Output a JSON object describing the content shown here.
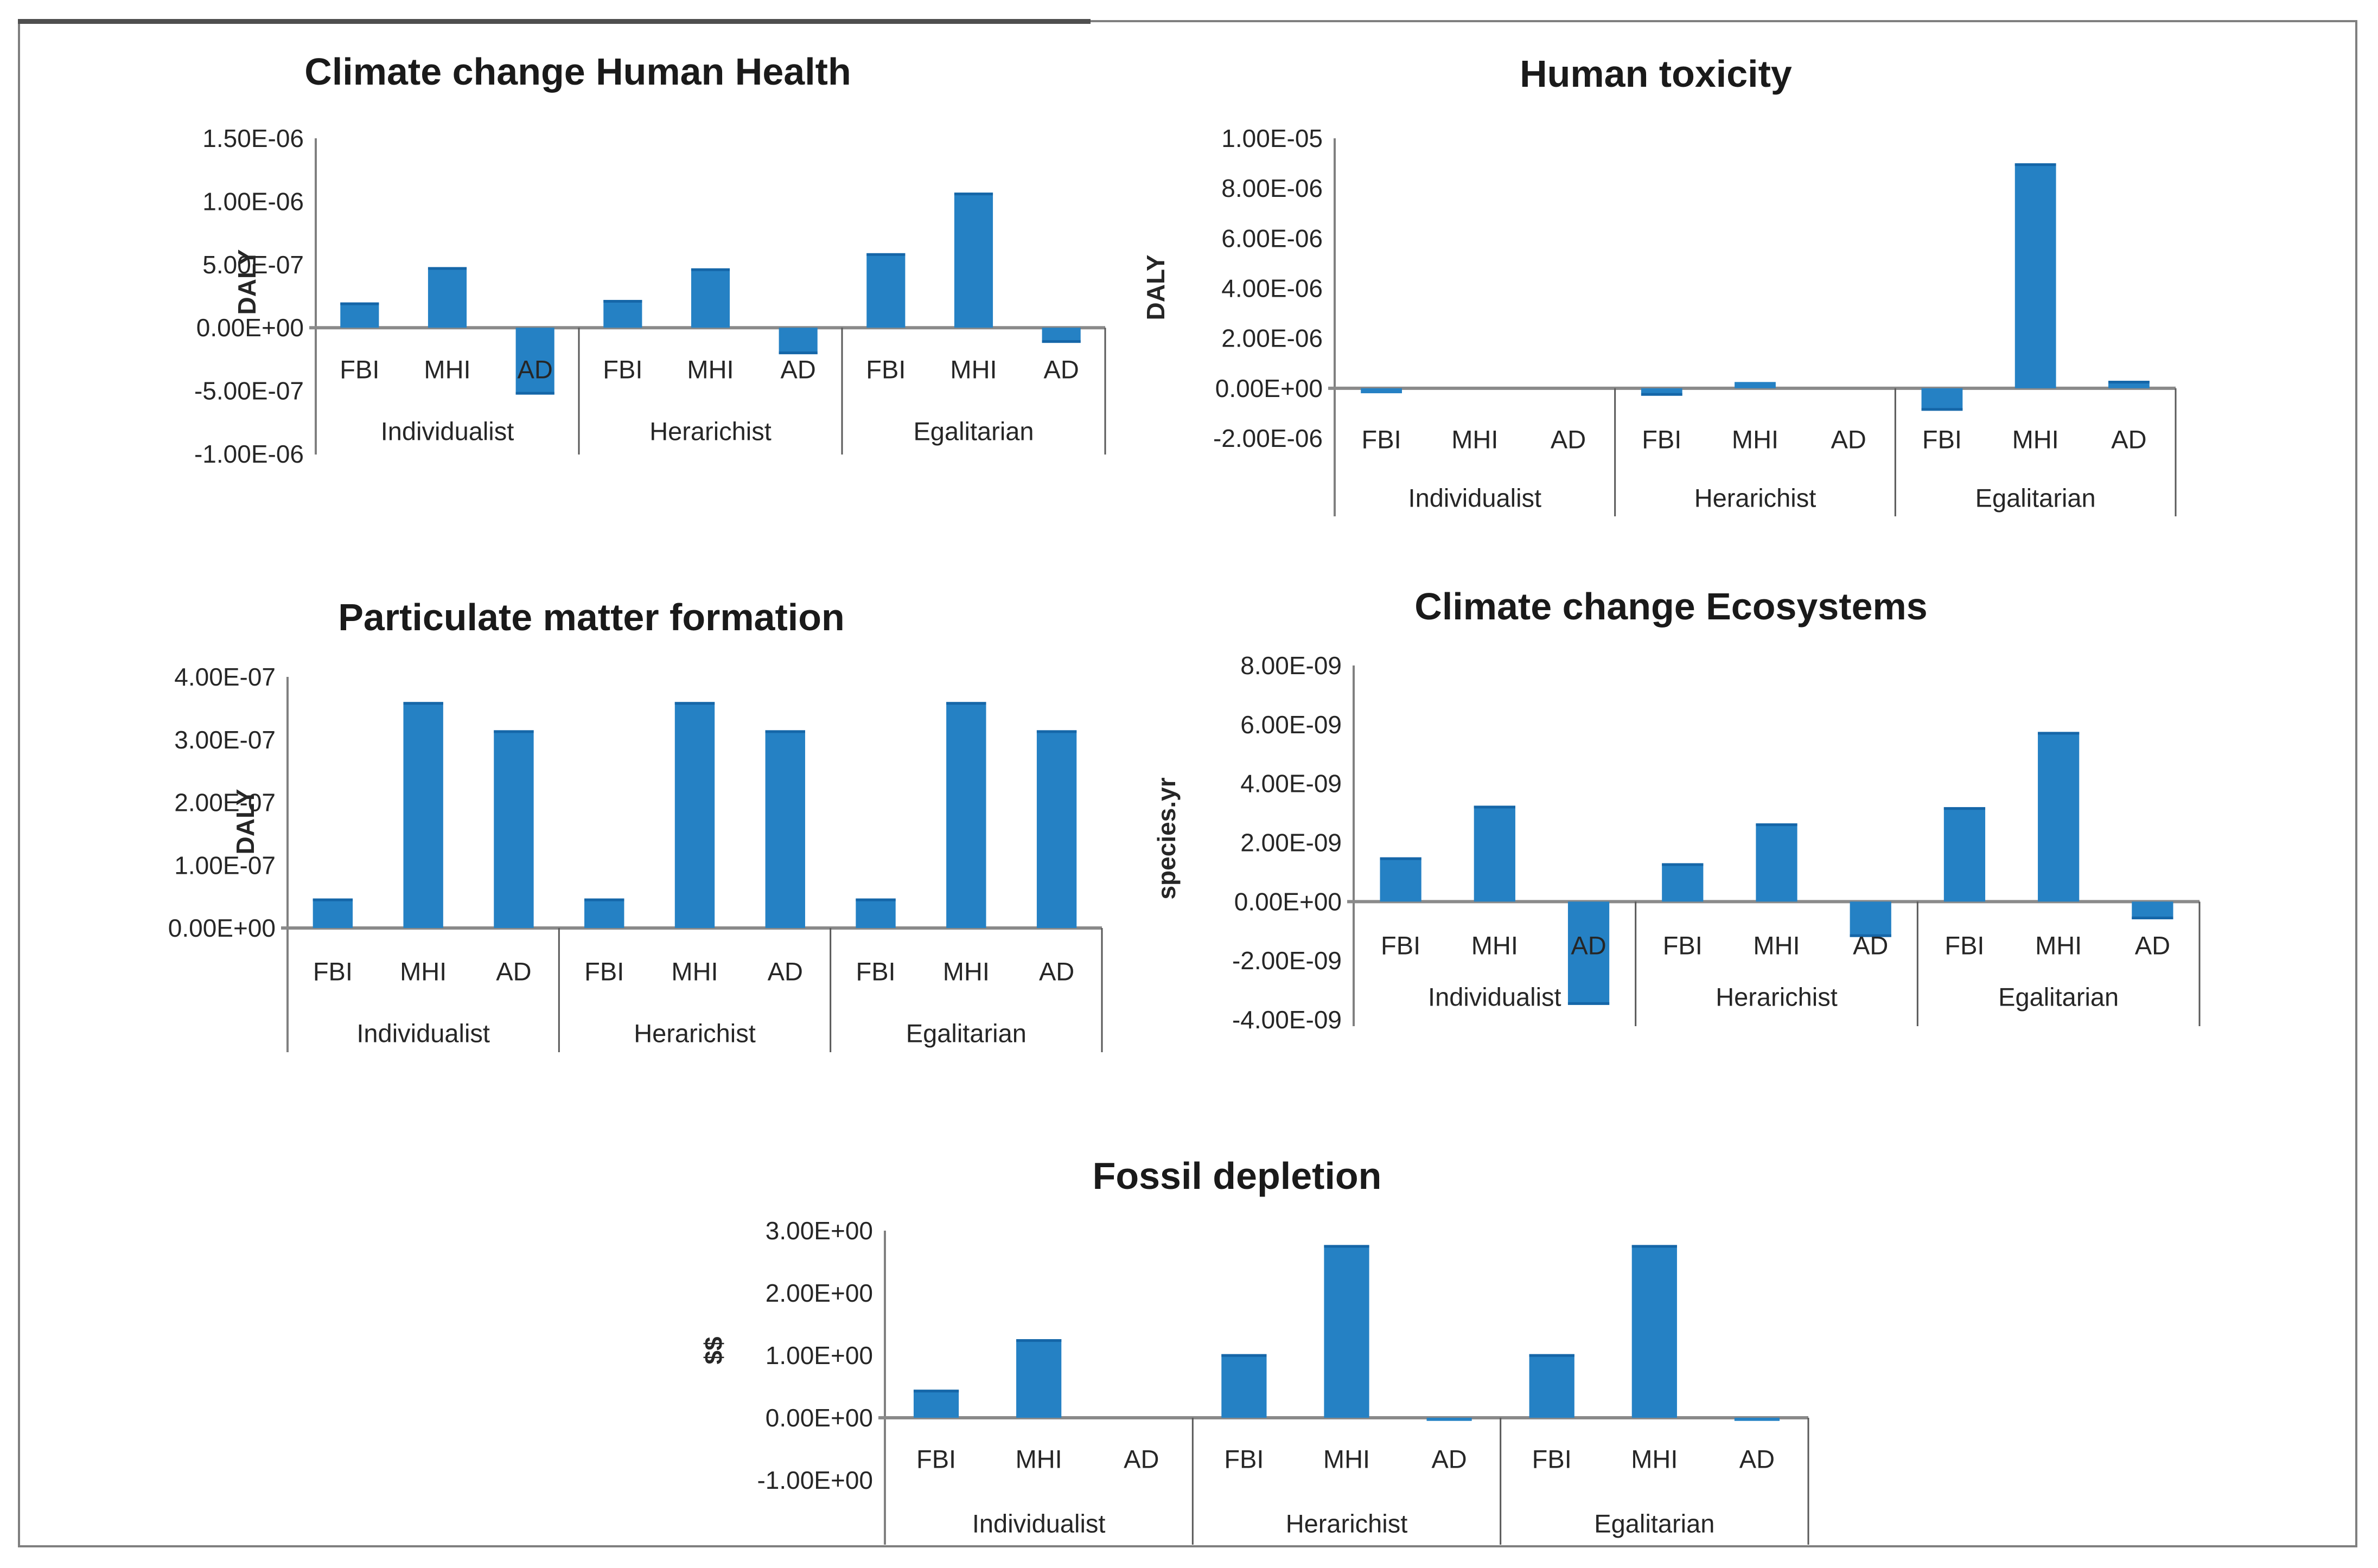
{
  "page": {
    "background": "#ffffff",
    "frame_border_color": "#7f7f7f",
    "frame_top_segment_color": "#4f4f4f"
  },
  "chart_data": [
    {
      "type": "bar",
      "title": "Climate change Human Health",
      "ylabel": "DALY",
      "bar_color": "#2581C4",
      "bar_cap_color": "#1566A8",
      "grid": false,
      "legend": "none",
      "group_labels": [
        "Individualist",
        "Herarichist",
        "Egalitarian"
      ],
      "bar_labels": [
        "FBI",
        "MHI",
        "AD"
      ],
      "values": [
        [
          2e-07,
          4.8e-07,
          -5.3e-07
        ],
        [
          2.2e-07,
          4.7e-07,
          -2.1e-07
        ],
        [
          5.9e-07,
          1.07e-06,
          -1.2e-07
        ]
      ],
      "ylim": [
        -1e-06,
        1.5e-06
      ],
      "yticks": [
        {
          "value": 1.5e-06,
          "label": "1.50E-06"
        },
        {
          "value": 1e-06,
          "label": "1.00E-06"
        },
        {
          "value": 5e-07,
          "label": "5.00E-07"
        },
        {
          "value": 0,
          "label": "0.00E+00"
        },
        {
          "value": -5e-07,
          "label": "-5.00E-07"
        },
        {
          "value": -1e-06,
          "label": "-1.00E-06"
        }
      ]
    },
    {
      "type": "bar",
      "title": "Human toxicity",
      "ylabel": "DALY",
      "bar_color": "#2581C4",
      "bar_cap_color": "#1566A8",
      "grid": false,
      "legend": "none",
      "group_labels": [
        "Individualist",
        "Herarichist",
        "Egalitarian"
      ],
      "bar_labels": [
        "FBI",
        "MHI",
        "AD"
      ],
      "values": [
        [
          -2e-07,
          0,
          0
        ],
        [
          -3e-07,
          2.5e-07,
          0
        ],
        [
          -9e-07,
          9e-06,
          3e-07
        ]
      ],
      "ylim": [
        -2e-06,
        1e-05
      ],
      "yticks": [
        {
          "value": 1e-05,
          "label": "1.00E-05"
        },
        {
          "value": 8e-06,
          "label": "8.00E-06"
        },
        {
          "value": 6e-06,
          "label": "6.00E-06"
        },
        {
          "value": 4e-06,
          "label": "4.00E-06"
        },
        {
          "value": 2e-06,
          "label": "2.00E-06"
        },
        {
          "value": 0,
          "label": "0.00E+00"
        },
        {
          "value": -2e-06,
          "label": "-2.00E-06"
        }
      ]
    },
    {
      "type": "bar",
      "title": "Particulate matter formation",
      "ylabel": "DALY",
      "bar_color": "#2581C4",
      "bar_cap_color": "#1566A8",
      "grid": false,
      "legend": "none",
      "group_labels": [
        "Individualist",
        "Herarichist",
        "Egalitarian"
      ],
      "bar_labels": [
        "FBI",
        "MHI",
        "AD"
      ],
      "values": [
        [
          4.7e-08,
          3.6e-07,
          3.15e-07
        ],
        [
          4.7e-08,
          3.6e-07,
          3.15e-07
        ],
        [
          4.7e-08,
          3.6e-07,
          3.15e-07
        ]
      ],
      "ylim": [
        0,
        4e-07
      ],
      "yticks": [
        {
          "value": 4e-07,
          "label": "4.00E-07"
        },
        {
          "value": 3e-07,
          "label": "3.00E-07"
        },
        {
          "value": 2e-07,
          "label": "2.00E-07"
        },
        {
          "value": 1e-07,
          "label": "1.00E-07"
        },
        {
          "value": 0,
          "label": "0.00E+00"
        }
      ]
    },
    {
      "type": "bar",
      "title": "Climate change Ecosystems",
      "ylabel": "species.yr",
      "bar_color": "#2581C4",
      "bar_cap_color": "#1566A8",
      "grid": false,
      "legend": "none",
      "group_labels": [
        "Individualist",
        "Herarichist",
        "Egalitarian"
      ],
      "bar_labels": [
        "FBI",
        "MHI",
        "AD"
      ],
      "values": [
        [
          1.5e-09,
          3.25e-09,
          -3.5e-09
        ],
        [
          1.3e-09,
          2.65e-09,
          -1.2e-09
        ],
        [
          3.2e-09,
          5.75e-09,
          -6e-10
        ]
      ],
      "ylim": [
        -4e-09,
        8e-09
      ],
      "yticks": [
        {
          "value": 8e-09,
          "label": "8.00E-09"
        },
        {
          "value": 6e-09,
          "label": "6.00E-09"
        },
        {
          "value": 4e-09,
          "label": "4.00E-09"
        },
        {
          "value": 2e-09,
          "label": "2.00E-09"
        },
        {
          "value": 0,
          "label": "0.00E+00"
        },
        {
          "value": -2e-09,
          "label": "-2.00E-09"
        },
        {
          "value": -4e-09,
          "label": "-4.00E-09"
        }
      ]
    },
    {
      "type": "bar",
      "title": "Fossil depletion",
      "ylabel": "$$",
      "bar_color": "#2581C4",
      "bar_cap_color": "#1566A8",
      "grid": false,
      "legend": "none",
      "group_labels": [
        "Individualist",
        "Herarichist",
        "Egalitarian"
      ],
      "bar_labels": [
        "FBI",
        "MHI",
        "AD"
      ],
      "values": [
        [
          0.45,
          1.26,
          0
        ],
        [
          1.02,
          2.77,
          -0.05
        ],
        [
          1.02,
          2.77,
          -0.05
        ]
      ],
      "ylim": [
        -1.0,
        3.0
      ],
      "yticks": [
        {
          "value": 3,
          "label": "3.00E+00"
        },
        {
          "value": 2,
          "label": "2.00E+00"
        },
        {
          "value": 1,
          "label": "1.00E+00"
        },
        {
          "value": 0,
          "label": "0.00E+00"
        },
        {
          "value": -1,
          "label": "-1.00E+00"
        }
      ]
    }
  ]
}
